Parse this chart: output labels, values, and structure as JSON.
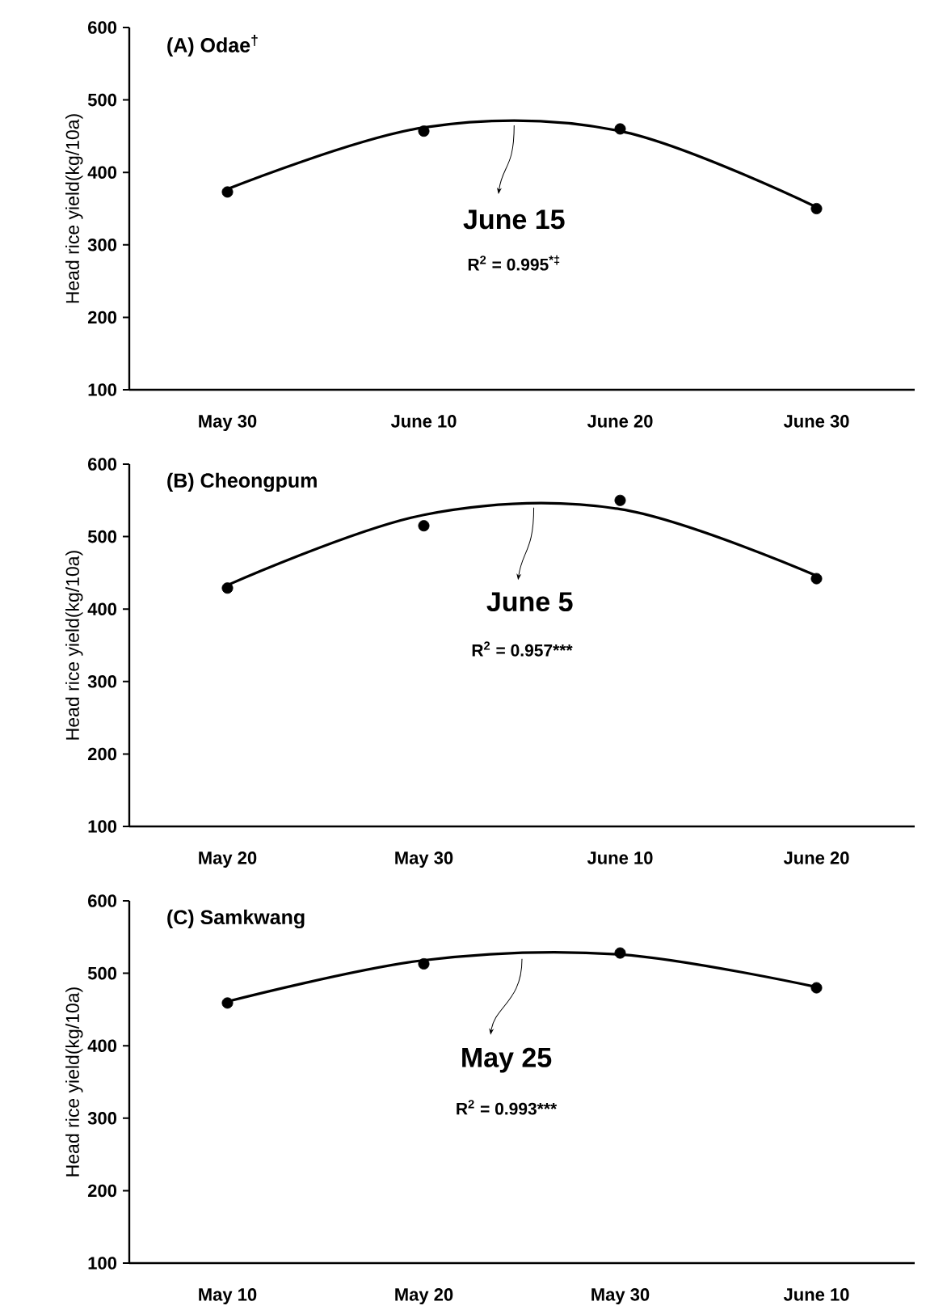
{
  "chart_data": [
    {
      "type": "scatter",
      "title": "(A) Odae$^{†}$",
      "ylabel": "Head rice yield(kg/10a)",
      "categories": [
        "May 30",
        "June 10",
        "June 20",
        "June 30"
      ],
      "ylim": [
        100,
        600
      ],
      "yticks": [
        100,
        200,
        300,
        400,
        500,
        600
      ],
      "annotations": [
        "June 15",
        "R$^{2}$ = 0.995$^{*‡}$"
      ],
      "series": [
        {
          "color": "#000000",
          "marker": "circle",
          "values": [
            373,
            457,
            460,
            350
          ]
        },
        {
          "type": "line",
          "color": "#000000",
          "marker": "none",
          "values": [
            377,
            462,
            457,
            352
          ]
        }
      ]
    },
    {
      "type": "scatter",
      "title": "(B) Cheongpum",
      "ylabel": "Head rice yield(kg/10a)",
      "categories": [
        "May 20",
        "May 30",
        "June 10",
        "June 20"
      ],
      "ylim": [
        100,
        600
      ],
      "yticks": [
        100,
        200,
        300,
        400,
        500,
        600
      ],
      "annotations": [
        "June 5",
        "R$^{2}$ = 0.957***"
      ],
      "series": [
        {
          "color": "#000000",
          "marker": "circle",
          "values": [
            429,
            515,
            550,
            442
          ]
        },
        {
          "type": "line",
          "color": "#000000",
          "marker": "none",
          "values": [
            433,
            530,
            538,
            446
          ]
        }
      ]
    },
    {
      "type": "scatter",
      "title": "(C) Samkwang",
      "ylabel": "Head rice yield(kg/10a)",
      "categories": [
        "May 10",
        "May 20",
        "May 30",
        "June 10"
      ],
      "ylim": [
        100,
        600
      ],
      "yticks": [
        100,
        200,
        300,
        400,
        500,
        600
      ],
      "annotations": [
        "May 25",
        "R$^{2}$ = 0.993***"
      ],
      "series": [
        {
          "color": "#000000",
          "marker": "circle",
          "values": [
            459,
            513,
            528,
            480
          ]
        },
        {
          "type": "line",
          "color": "#000000",
          "marker": "none",
          "values": [
            461,
            518,
            526,
            481
          ]
        }
      ]
    }
  ]
}
